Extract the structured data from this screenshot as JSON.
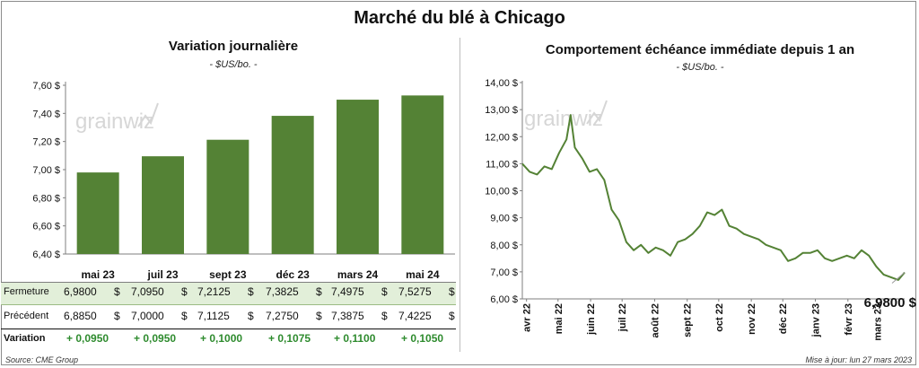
{
  "main_title": "Marché du blé à Chicago",
  "left_panel": {
    "title": "Variation journalière",
    "subtitle": "- $US/bo. -",
    "watermark": "grainwiz"
  },
  "right_panel": {
    "title": "Comportement échéance immédiate depuis 1 an",
    "subtitle": "- $US/bo. -",
    "watermark": "grainwiz",
    "last_value_label": "6,9800 $"
  },
  "table": {
    "rows": [
      {
        "label": "Fermeture",
        "values": [
          "6,9800",
          "7,0950",
          "7,2125",
          "7,3825",
          "7,4975",
          "7,5275"
        ],
        "suffix": "$"
      },
      {
        "label": "Précédent",
        "values": [
          "6,8850",
          "7,0000",
          "7,1125",
          "7,2750",
          "7,3875",
          "7,4225"
        ],
        "suffix": "$"
      },
      {
        "label": "Variation",
        "values": [
          "+ 0,0950",
          "+ 0,0950",
          "+ 0,1000",
          "+ 0,1075",
          "+ 0,1100",
          "+ 0,1050"
        ],
        "suffix": ""
      }
    ],
    "colors": {
      "highlight_bg": "#e2efd9",
      "variation_text": "#2e8b2e"
    }
  },
  "footer": {
    "source": "Source: CME Group",
    "updated": "Mise à jour: lun 27 mars 2023"
  },
  "chart_data": [
    {
      "type": "bar",
      "title": "Variation journalière",
      "subtitle": "- $US/bo. -",
      "categories": [
        "mai 23",
        "juil 23",
        "sept 23",
        "déc 23",
        "mars 24",
        "mai 24"
      ],
      "values": [
        6.98,
        7.095,
        7.2125,
        7.3825,
        7.4975,
        7.5275
      ],
      "ylim": [
        6.4,
        7.6
      ],
      "yticks": [
        "6,40 $",
        "6,60 $",
        "6,80 $",
        "7,00 $",
        "7,20 $",
        "7,40 $",
        "7,60 $"
      ],
      "color": "#548235",
      "grid": false
    },
    {
      "type": "line",
      "title": "Comportement échéance immédiate depuis 1 an",
      "subtitle": "- $US/bo. -",
      "ylim": [
        6.0,
        14.0
      ],
      "yticks": [
        "6,00 $",
        "7,00 $",
        "8,00 $",
        "9,00 $",
        "10,00 $",
        "11,00 $",
        "12,00 $",
        "13,00 $",
        "14,00 $"
      ],
      "xticks": [
        "avr 22",
        "mai 22",
        "juin 22",
        "juil 22",
        "août 22",
        "sept 22",
        "oct 22",
        "nov 22",
        "déc 22",
        "janv 23",
        "févr 23",
        "mars 23"
      ],
      "color": "#548235",
      "grid": false,
      "x": [
        "2022-03-28",
        "2022-04-04",
        "2022-04-11",
        "2022-04-18",
        "2022-04-25",
        "2022-05-02",
        "2022-05-09",
        "2022-05-13",
        "2022-05-17",
        "2022-05-24",
        "2022-05-31",
        "2022-06-07",
        "2022-06-14",
        "2022-06-21",
        "2022-06-28",
        "2022-07-05",
        "2022-07-12",
        "2022-07-19",
        "2022-07-26",
        "2022-08-02",
        "2022-08-09",
        "2022-08-16",
        "2022-08-23",
        "2022-08-30",
        "2022-09-06",
        "2022-09-13",
        "2022-09-20",
        "2022-09-27",
        "2022-10-04",
        "2022-10-11",
        "2022-10-18",
        "2022-10-25",
        "2022-11-01",
        "2022-11-08",
        "2022-11-15",
        "2022-11-22",
        "2022-11-29",
        "2022-12-06",
        "2022-12-13",
        "2022-12-20",
        "2022-12-27",
        "2023-01-03",
        "2023-01-10",
        "2023-01-17",
        "2023-01-24",
        "2023-01-31",
        "2023-02-07",
        "2023-02-14",
        "2023-02-21",
        "2023-02-28",
        "2023-03-07",
        "2023-03-14",
        "2023-03-21",
        "2023-03-27"
      ],
      "y": [
        11.0,
        10.7,
        10.6,
        10.9,
        10.8,
        11.4,
        11.9,
        12.8,
        11.6,
        11.2,
        10.7,
        10.8,
        10.4,
        9.3,
        8.9,
        8.1,
        7.8,
        8.0,
        7.7,
        7.9,
        7.8,
        7.6,
        8.1,
        8.2,
        8.4,
        8.7,
        9.2,
        9.1,
        9.3,
        8.7,
        8.6,
        8.4,
        8.3,
        8.2,
        8.0,
        7.9,
        7.8,
        7.4,
        7.5,
        7.7,
        7.7,
        7.8,
        7.5,
        7.4,
        7.5,
        7.6,
        7.5,
        7.8,
        7.6,
        7.2,
        6.9,
        6.8,
        6.7,
        6.98
      ]
    }
  ]
}
